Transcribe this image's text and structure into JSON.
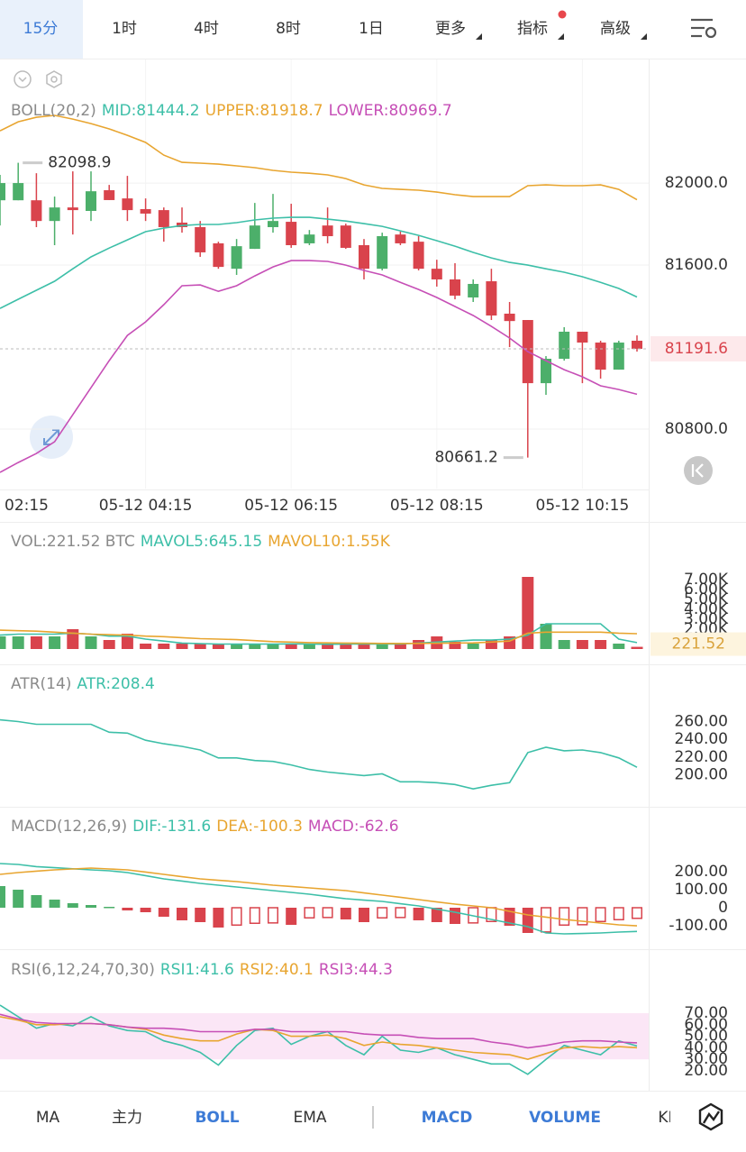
{
  "tabs": [
    {
      "label": "15分",
      "active": true
    },
    {
      "label": "1时",
      "active": false
    },
    {
      "label": "4时",
      "active": false
    },
    {
      "label": "8时",
      "active": false
    },
    {
      "label": "1日",
      "active": false
    },
    {
      "label": "更多",
      "active": false
    },
    {
      "label": "指标",
      "active": false
    },
    {
      "label": "高级",
      "active": false
    }
  ],
  "indicators": [
    {
      "label": "MA",
      "active": false
    },
    {
      "label": "主力",
      "active": false
    },
    {
      "label": "BOLL",
      "active": true
    },
    {
      "label": "EMA",
      "active": false
    },
    {
      "label": "MACD",
      "active": true
    },
    {
      "label": "VOLUME",
      "active": true
    },
    {
      "label": "KDJ",
      "active": false
    }
  ],
  "chart_data": [
    {
      "type": "candlestick",
      "title": "BOLL(20,2)",
      "up_color": "#4caf6a",
      "down_color": "#d9434c",
      "grid": true,
      "categories": [
        "02:15",
        null,
        null,
        null,
        null,
        null,
        null,
        null,
        "05-12 04:15",
        null,
        null,
        null,
        null,
        null,
        null,
        null,
        "05-12 06:15",
        null,
        null,
        null,
        null,
        null,
        null,
        null,
        "05-12 08:15",
        null,
        null,
        null,
        null,
        null,
        null,
        null,
        "05-12 10:15",
        null,
        null,
        null
      ],
      "open": [
        81916,
        81916,
        81916,
        81815,
        81881,
        81864,
        81965,
        81925,
        81873,
        81868,
        81807,
        81785,
        81706,
        81582,
        81679,
        81785,
        81811,
        81706,
        81793,
        81793,
        81697,
        81582,
        81749,
        81714,
        81582,
        81530,
        81442,
        81521,
        81363,
        81332,
        81024,
        81143,
        81275,
        81222,
        81090,
        81231
      ],
      "high": [
        82040,
        82098.9,
        82048,
        81934,
        82057,
        82057,
        81991,
        82035,
        81925,
        81881,
        81881,
        81815,
        81714,
        81727,
        81903,
        81947,
        81899,
        81771,
        81881,
        81802,
        81727,
        81758,
        81763,
        81741,
        81626,
        81609,
        81530,
        81582,
        81420,
        81332,
        81156,
        81297,
        81275,
        81231,
        81231,
        81257
      ],
      "low": [
        81793,
        81916,
        81785,
        81697,
        81749,
        81815,
        81917,
        81815,
        81815,
        81714,
        81758,
        81640,
        81582,
        81552,
        81679,
        81758,
        81684,
        81697,
        81706,
        81679,
        81530,
        81574,
        81697,
        81574,
        81495,
        81433,
        81420,
        81332,
        81200,
        80661.2,
        80967,
        81134,
        81024,
        81046,
        81090,
        81178
      ],
      "close": [
        82000,
        82000,
        81815,
        81881,
        81868,
        81960,
        81917,
        81868,
        81851,
        81785,
        81785,
        81662,
        81591,
        81692,
        81793,
        81815,
        81697,
        81749,
        81741,
        81684,
        81582,
        81741,
        81706,
        81582,
        81530,
        81451,
        81508,
        81354,
        81327,
        81024,
        81143,
        81275,
        81222,
        81090,
        81222,
        81191.6
      ],
      "series": [
        {
          "name": "MID:81444.2",
          "color": "#3dbfa8",
          "values": [
            81389,
            81433,
            81477,
            81521,
            81582,
            81640,
            81683,
            81723,
            81763,
            81780,
            81793,
            81798,
            81798,
            81807,
            81820,
            81829,
            81833,
            81833,
            81824,
            81815,
            81802,
            81789,
            81767,
            81745,
            81719,
            81692,
            81662,
            81635,
            81613,
            81600,
            81582,
            81565,
            81543,
            81516,
            81486,
            81444.2
          ]
        },
        {
          "name": "UPPER:81918.7",
          "color": "#e8a530",
          "values": [
            82255,
            82299,
            82321,
            82330,
            82312,
            82290,
            82264,
            82233,
            82198,
            82136,
            82101,
            82097,
            82092,
            82084,
            82075,
            82062,
            82053,
            82048,
            82040,
            82022,
            81991,
            81974,
            81969,
            81965,
            81956,
            81943,
            81934,
            81934,
            81934,
            81987,
            81991,
            81987,
            81987,
            81991,
            81969,
            81918.7
          ]
        },
        {
          "name": "LOWER:80969.7",
          "color": "#c64fb6",
          "values": [
            80589,
            80637,
            80681,
            80738,
            80870,
            81002,
            81134,
            81257,
            81323,
            81407,
            81499,
            81503,
            81472,
            81499,
            81547,
            81591,
            81622,
            81622,
            81618,
            81600,
            81574,
            81552,
            81516,
            81481,
            81442,
            81398,
            81354,
            81301,
            81244,
            81178,
            81134,
            81090,
            81055,
            81011,
            80993,
            80969.7
          ]
        }
      ],
      "ylim": [
        80510,
        82585
      ],
      "yticks": [
        {
          "value": 82000,
          "label": "82000.0"
        },
        {
          "value": 81600,
          "label": "81600.0"
        },
        {
          "value": 80800,
          "label": "80800.0"
        }
      ]
    },
    {
      "type": "bar",
      "title": "VOL:221.52 BTC",
      "values": [
        1274,
        1274,
        1274,
        1274,
        2002,
        1274,
        910,
        1547,
        546,
        546,
        546,
        546,
        546,
        546,
        455,
        455,
        546,
        455,
        455,
        455,
        546,
        455,
        455,
        910,
        1274,
        728,
        546,
        910,
        1274,
        7280,
        2548,
        910,
        910,
        910,
        546,
        221.52
      ],
      "series": [
        {
          "name": "MAVOL5:645.15",
          "color": "#3dbfa8",
          "values": [
            1400,
            1500,
            1500,
            1500,
            1600,
            1500,
            1300,
            1300,
            1000,
            800,
            600,
            550,
            500,
            500,
            500,
            500,
            520,
            500,
            480,
            500,
            500,
            500,
            500,
            600,
            700,
            800,
            900,
            900,
            1000,
            1400,
            2550,
            2550,
            2550,
            2550,
            1000,
            645.15
          ]
        },
        {
          "name": "MAVOL10:1.55K",
          "color": "#e8a530",
          "values": [
            1900,
            1850,
            1800,
            1700,
            1600,
            1500,
            1450,
            1400,
            1300,
            1250,
            1150,
            1050,
            1000,
            950,
            850,
            750,
            700,
            650,
            620,
            600,
            580,
            560,
            560,
            560,
            580,
            600,
            620,
            700,
            800,
            1600,
            1700,
            1700,
            1700,
            1700,
            1600,
            1550
          ]
        }
      ],
      "ylim": [
        0,
        9100
      ],
      "yticks": [
        {
          "value": 7000,
          "label": "7.00K"
        },
        {
          "value": 6000,
          "label": "6.00K"
        },
        {
          "value": 5000,
          "label": "5.00K"
        },
        {
          "value": 4000,
          "label": "4.00K"
        },
        {
          "value": 3000,
          "label": "3.00K"
        },
        {
          "value": 2000,
          "label": "2.00K"
        }
      ]
    },
    {
      "type": "line",
      "title": "ATR(14)",
      "series": [
        {
          "name": "ATR:208.4",
          "color": "#3dbfa8",
          "values": [
            262,
            260,
            257,
            257,
            257,
            257,
            248,
            247,
            239,
            235,
            232,
            228,
            219,
            219,
            216,
            215,
            211,
            206,
            203,
            201,
            199,
            201,
            192,
            192,
            191,
            189,
            184,
            188,
            191,
            225,
            231,
            227,
            228,
            225,
            219,
            208.4
          ]
        }
      ],
      "ylim": [
        175,
        286
      ],
      "yticks": [
        {
          "value": 260,
          "label": "260.00"
        },
        {
          "value": 240,
          "label": "240.00"
        },
        {
          "value": 220,
          "label": "220.00"
        },
        {
          "value": 200,
          "label": "200.00"
        }
      ]
    },
    {
      "type": "macd",
      "title": "MACD(12,26,9)",
      "series": [
        {
          "name": "DIF:-131.6",
          "color": "#3dbfa8",
          "values": [
            245,
            240,
            228,
            222,
            216,
            210,
            205,
            195,
            178,
            160,
            148,
            135,
            125,
            115,
            105,
            95,
            85,
            75,
            62,
            50,
            42,
            35,
            22,
            10,
            -8,
            -25,
            -45,
            -65,
            -85,
            -105,
            -140,
            -145,
            -143,
            -140,
            -135,
            -131.6
          ]
        },
        {
          "name": "DEA:-100.3",
          "color": "#e8a530",
          "values": [
            185,
            195,
            203,
            210,
            215,
            220,
            215,
            210,
            198,
            185,
            172,
            160,
            152,
            145,
            135,
            125,
            118,
            110,
            102,
            95,
            82,
            70,
            58,
            45,
            32,
            20,
            10,
            0,
            -20,
            -40,
            -52,
            -65,
            -75,
            -85,
            -95,
            -100.3
          ]
        }
      ],
      "histogram": {
        "name": "MACD:-62.6",
        "color": "#c64fb6",
        "values": [
          120,
          100,
          70,
          45,
          25,
          15,
          5,
          -15,
          -25,
          -50,
          -70,
          -80,
          -110,
          -100,
          -90,
          -88,
          -95,
          -60,
          -58,
          -65,
          -80,
          -60,
          -58,
          -70,
          -80,
          -90,
          -88,
          -80,
          -100,
          -140,
          -138,
          -100,
          -98,
          -80,
          -70,
          -62.6
        ]
      },
      "ylim": [
        -190,
        335
      ],
      "yticks": [
        {
          "value": 200,
          "label": "200.00"
        },
        {
          "value": 100,
          "label": "100.00"
        },
        0,
        {
          "value": -100,
          "label": "-100.00"
        }
      ]
    },
    {
      "type": "line",
      "title": "RSI(6,12,24,70,30)",
      "band": [
        30,
        70
      ],
      "band_color": "#fbe6f6",
      "series": [
        {
          "name": "RSI1:41.6",
          "color": "#3dbfa8",
          "values": [
            77,
            67,
            57,
            61,
            59,
            67,
            59,
            55,
            54,
            46,
            42,
            36,
            25,
            42,
            55,
            57,
            43,
            50,
            54,
            42,
            34,
            50,
            38,
            36,
            40,
            34,
            30,
            26,
            26,
            17,
            30,
            42,
            38,
            34,
            46,
            41.6
          ]
        },
        {
          "name": "RSI2:40.1",
          "color": "#e8a530",
          "values": [
            67,
            64,
            60,
            60,
            61,
            61,
            60,
            58,
            56,
            51,
            48,
            46,
            46,
            52,
            56,
            55,
            50,
            50,
            51,
            48,
            42,
            45,
            43,
            42,
            40,
            38,
            36,
            35,
            34,
            30,
            35,
            40,
            41,
            40,
            41,
            40.1
          ]
        },
        {
          "name": "RSI3:44.3",
          "color": "#c64fb6",
          "values": [
            69,
            65,
            62,
            61,
            61,
            61,
            60,
            58,
            57,
            57,
            56,
            54,
            54,
            54,
            56,
            56,
            54,
            54,
            54,
            54,
            52,
            51,
            51,
            49,
            48,
            48,
            48,
            45,
            43,
            40,
            42,
            45,
            46,
            46,
            45,
            44.3
          ]
        }
      ],
      "ylim": [
        6.7,
        92.7
      ],
      "yticks": [
        {
          "value": 70,
          "label": "70.00"
        },
        {
          "value": 60,
          "label": "60.00"
        },
        {
          "value": 50,
          "label": "50.00"
        },
        {
          "value": 40,
          "label": "40.00"
        },
        {
          "value": 30,
          "label": "30.00"
        },
        {
          "value": 20,
          "label": "20.00"
        }
      ]
    }
  ]
}
